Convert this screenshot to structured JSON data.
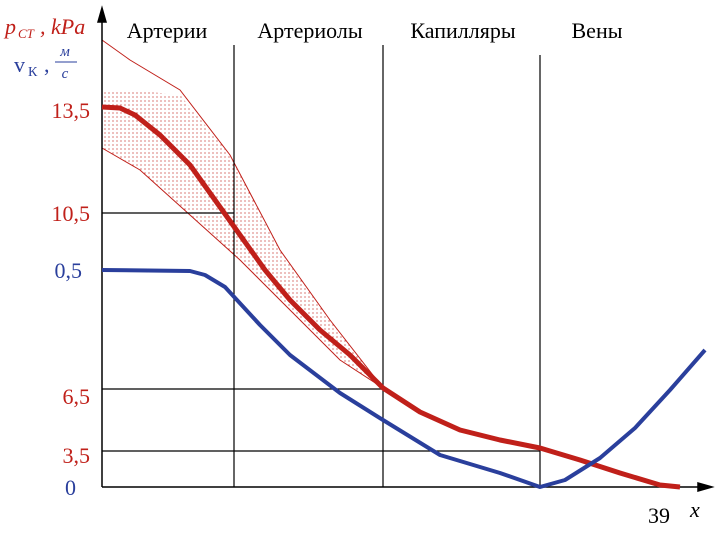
{
  "header": {
    "p_symbol": "p",
    "p_subscript": "СТ",
    "p_unit": ", kPa",
    "v_symbol": "v",
    "v_subscript": "К",
    "v_comma": ",",
    "v_unit_num": "м",
    "v_unit_den": "с"
  },
  "regions": [
    "Артерии",
    "Артериолы",
    "Капилляры",
    "Вены"
  ],
  "y_labels": [
    "13,5",
    "10,5",
    "0,5",
    "6,5",
    "3,5",
    "0"
  ],
  "x_axis": {
    "end_label": "39",
    "name": "x"
  }
}
